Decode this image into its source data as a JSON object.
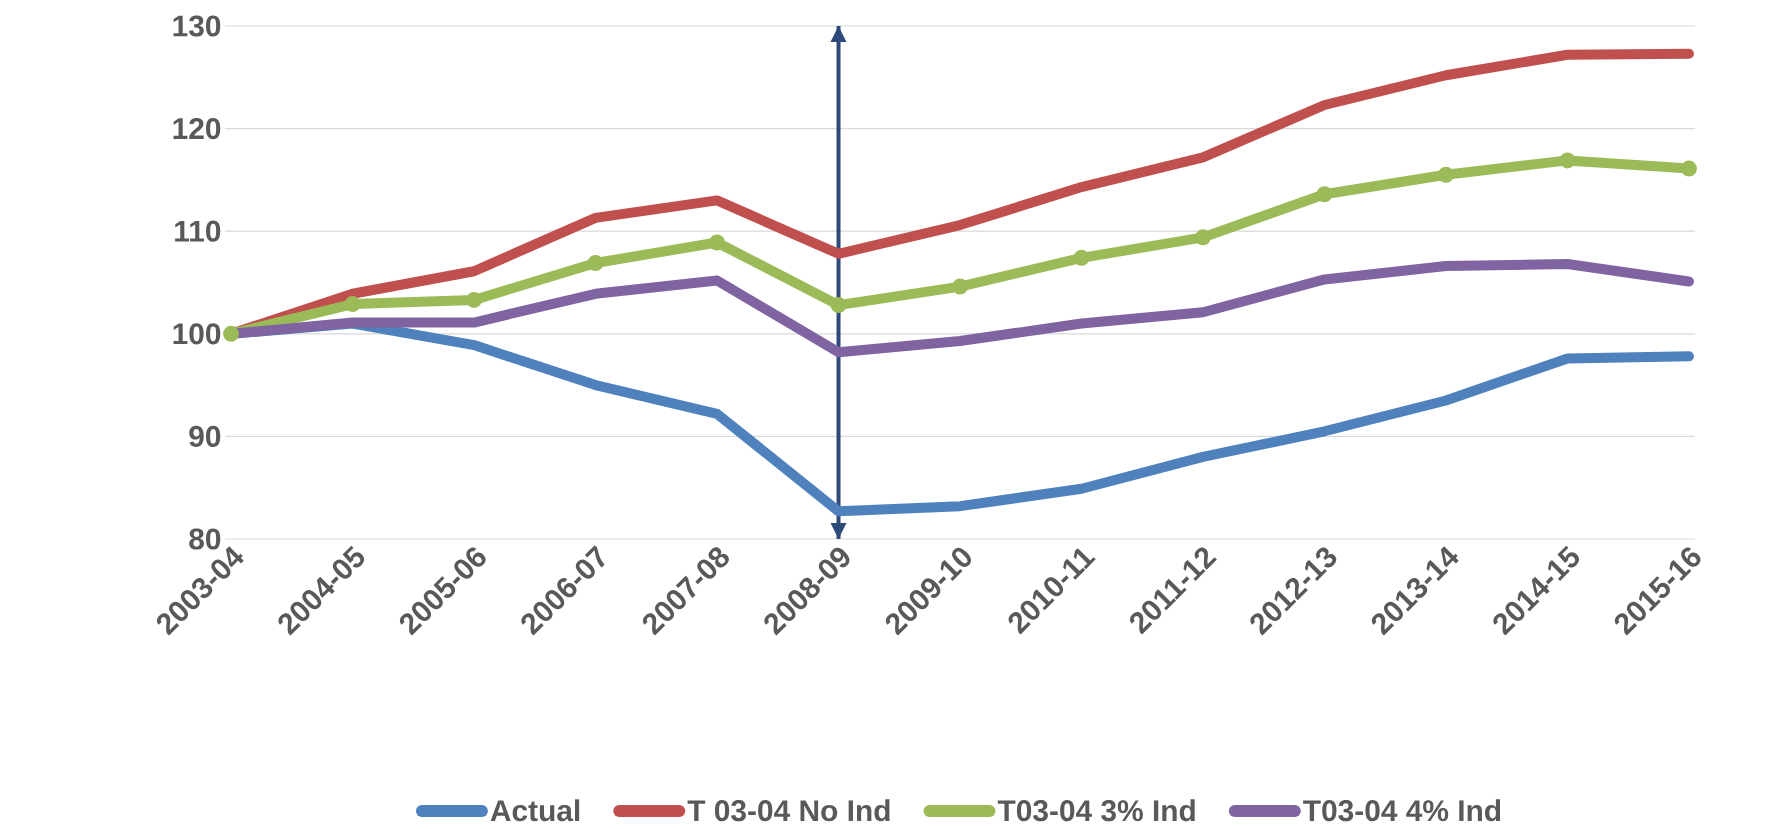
{
  "chart_data": {
    "type": "line",
    "categories": [
      "2003-04",
      "2004-05",
      "2005-06",
      "2006-07",
      "2007-08",
      "2008-09",
      "2009-10",
      "2010-11",
      "2011-12",
      "2012-13",
      "2013-14",
      "2014-15",
      "2015-16"
    ],
    "series": [
      {
        "name": "Actual",
        "color": "#4f81bd",
        "values": [
          100,
          101,
          98.9,
          95,
          92.2,
          82.7,
          83.2,
          84.9,
          88,
          90.5,
          93.5,
          97.6,
          97.8
        ]
      },
      {
        "name": "T 03-04 No Ind",
        "color": "#c0504d",
        "values": [
          100,
          103.9,
          106.1,
          111.3,
          113,
          107.8,
          110.6,
          114.3,
          117.2,
          122.3,
          125.2,
          127.2,
          127.3
        ]
      },
      {
        "name": "T03-04 3% Ind",
        "color": "#9bbb59",
        "marker": "circle",
        "values": [
          100,
          102.9,
          103.3,
          106.9,
          108.9,
          102.8,
          104.6,
          107.4,
          109.4,
          113.6,
          115.5,
          116.9,
          116.1
        ]
      },
      {
        "name": "T03-04 4% Ind",
        "color": "#8064a2",
        "values": [
          100,
          101.1,
          101.1,
          103.9,
          105.2,
          98.2,
          99.3,
          101,
          102.1,
          105.3,
          106.6,
          106.8,
          105.1
        ]
      }
    ],
    "ylim": [
      80,
      130
    ],
    "yticks": [
      80,
      90,
      100,
      110,
      120,
      130
    ],
    "grid": "y",
    "legend": "bottom",
    "ref_lines": [
      {
        "axis": "x",
        "value": "2008-09",
        "color": "#2e4a7a"
      }
    ]
  }
}
